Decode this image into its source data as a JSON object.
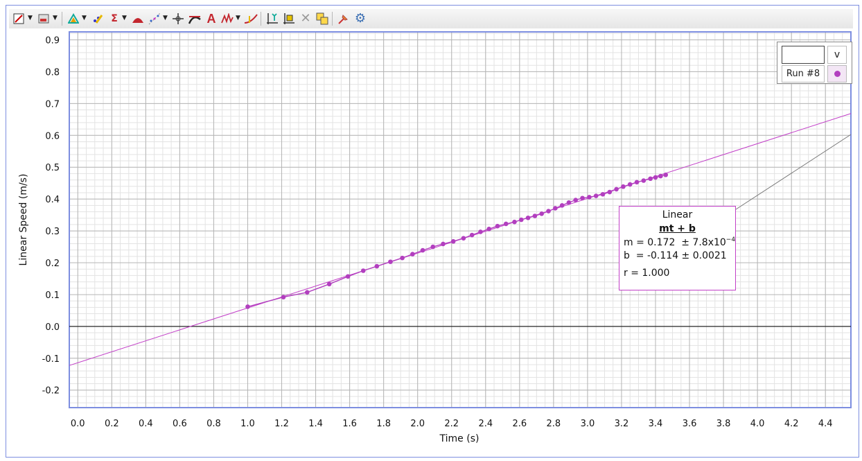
{
  "toolbar": {
    "icons": [
      "graph-options-icon",
      "data-table-icon",
      "analyze-icon",
      "examine-icon",
      "statistics-icon",
      "integral-icon",
      "curve-fit-icon",
      "crosshair-icon",
      "tangent-icon",
      "annotation-icon",
      "model-icon",
      "interpolate-icon",
      "autoscale-icon",
      "zoom-icon",
      "delete-icon",
      "duplicate-icon",
      "pin-icon",
      "settings-icon"
    ]
  },
  "colors": {
    "series": "#b23fbf",
    "fit_line": "#c23fc8",
    "grid_major": "#b5b5b5",
    "grid_minor": "#e3e3e3",
    "plot_border": "#7d8ee0",
    "leader_line": "#777777"
  },
  "legend": {
    "column_label": "v",
    "run_label": "Run #8"
  },
  "fit": {
    "title": "Linear",
    "equation": "mt + b",
    "m_line": "m = 0.172  ± 7.8x10",
    "m_exp": "−4",
    "b_line": "b  = -0.114 ± 0.0021",
    "r_line": "r = 1.000"
  },
  "chart_data": {
    "type": "scatter",
    "xlabel": "Time (s)",
    "ylabel": "Linear Speed (m/s)",
    "xlim": [
      -0.05,
      4.55
    ],
    "ylim": [
      -0.255,
      0.925
    ],
    "x_ticks": [
      "0.0",
      "0.2",
      "0.4",
      "0.6",
      "0.8",
      "1.0",
      "1.2",
      "1.4",
      "1.6",
      "1.8",
      "2.0",
      "2.2",
      "2.4",
      "2.6",
      "2.8",
      "3.0",
      "3.2",
      "3.4",
      "3.6",
      "3.8",
      "4.0",
      "4.2",
      "4.4"
    ],
    "y_ticks": [
      "-0.2",
      "-0.1",
      "0.0",
      "0.1",
      "0.2",
      "0.3",
      "0.4",
      "0.5",
      "0.6",
      "0.7",
      "0.8",
      "0.9"
    ],
    "grid": true,
    "legend_position": "top-right",
    "series": [
      {
        "name": "Run #8",
        "connected": true,
        "x": [
          1.0,
          1.21,
          1.35,
          1.48,
          1.59,
          1.68,
          1.76,
          1.84,
          1.91,
          1.97,
          2.03,
          2.09,
          2.15,
          2.21,
          2.27,
          2.32,
          2.37,
          2.42,
          2.47,
          2.52,
          2.57,
          2.61,
          2.65,
          2.69,
          2.73,
          2.77,
          2.81,
          2.85,
          2.89,
          2.93,
          2.97,
          3.01,
          3.05,
          3.09,
          3.13,
          3.17,
          3.21,
          3.25,
          3.29,
          3.33,
          3.37,
          3.4,
          3.43,
          3.46
        ],
        "y": [
          0.062,
          0.092,
          0.107,
          0.133,
          0.157,
          0.175,
          0.189,
          0.203,
          0.215,
          0.227,
          0.239,
          0.25,
          0.259,
          0.267,
          0.277,
          0.287,
          0.297,
          0.306,
          0.315,
          0.322,
          0.328,
          0.335,
          0.341,
          0.347,
          0.354,
          0.362,
          0.371,
          0.38,
          0.389,
          0.397,
          0.403,
          0.406,
          0.41,
          0.415,
          0.422,
          0.431,
          0.439,
          0.446,
          0.453,
          0.458,
          0.464,
          0.468,
          0.472,
          0.476
        ]
      }
    ],
    "fit_line": {
      "type": "linear",
      "m": 0.172,
      "b": -0.114
    }
  }
}
